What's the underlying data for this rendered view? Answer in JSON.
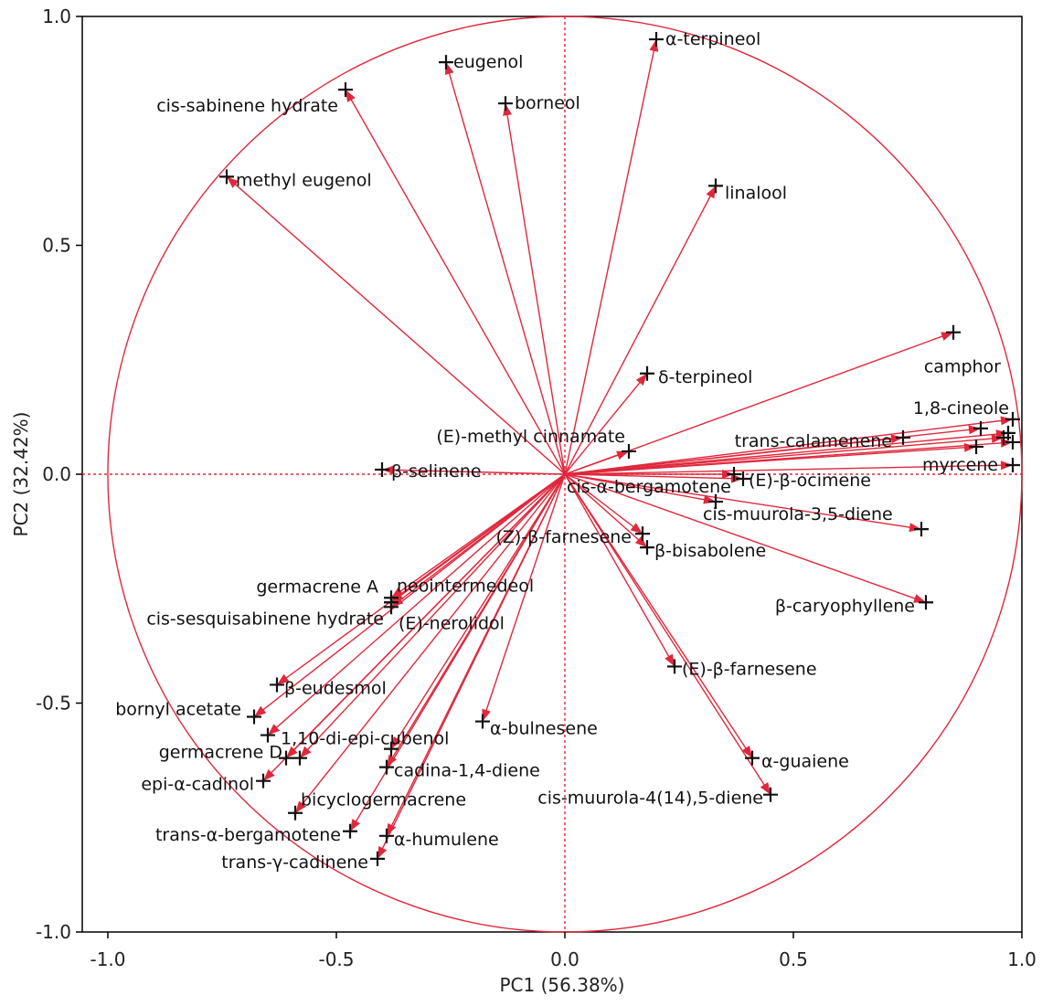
{
  "chart_data": {
    "type": "scatter",
    "subtype": "biplot-loadings",
    "title": "",
    "xlabel": "PC1 (56.38%)",
    "ylabel": "PC2 (32.42%)",
    "xlim": [
      -1.0,
      1.0
    ],
    "ylim": [
      -1.0,
      1.0
    ],
    "xticks": [
      -1.0,
      -0.5,
      0.0,
      0.5,
      1.0
    ],
    "yticks": [
      -1.0,
      -0.5,
      0.0,
      0.5,
      1.0
    ],
    "xtick_labels": [
      "-1.0",
      "-0.5",
      "0.0",
      "0.5",
      "1.0"
    ],
    "ytick_labels": [
      "-1.0",
      "-0.5",
      "0.0",
      "0.5",
      "1.0"
    ],
    "grid": false,
    "unit_circle": true,
    "reference_lines": [
      "x=0",
      "y=0"
    ],
    "colors": {
      "vector": "#e0283c",
      "marker": "#111111",
      "frame": "#000000"
    },
    "points": [
      {
        "label": "eugenol",
        "x": -0.26,
        "y": 0.9
      },
      {
        "label": "α-terpineol",
        "x": 0.2,
        "y": 0.95
      },
      {
        "label": "borneol",
        "x": -0.13,
        "y": 0.81
      },
      {
        "label": "cis-sabinene hydrate",
        "x": -0.48,
        "y": 0.84
      },
      {
        "label": "methyl eugenol",
        "x": -0.74,
        "y": 0.65
      },
      {
        "label": "linalool",
        "x": 0.33,
        "y": 0.63
      },
      {
        "label": "camphor",
        "x": 0.85,
        "y": 0.31
      },
      {
        "label": "δ-terpineol",
        "x": 0.18,
        "y": 0.22
      },
      {
        "label": "1,8-cineole",
        "x": 0.98,
        "y": 0.12
      },
      {
        "label": "trans-calamenene",
        "x": 0.74,
        "y": 0.08
      },
      {
        "label": "",
        "x": 0.91,
        "y": 0.1
      },
      {
        "label": "",
        "x": 0.96,
        "y": 0.08
      },
      {
        "label": "",
        "x": 0.98,
        "y": 0.07
      },
      {
        "label": "",
        "x": 0.97,
        "y": 0.09
      },
      {
        "label": "myrcene",
        "x": 0.9,
        "y": 0.06
      },
      {
        "label": "",
        "x": 0.98,
        "y": 0.02
      },
      {
        "label": "(E)-methyl cinnamate",
        "x": 0.14,
        "y": 0.05
      },
      {
        "label": "β-selinene",
        "x": -0.4,
        "y": 0.01
      },
      {
        "label": "cis-α-bergamotene",
        "x": 0.37,
        "y": 0.0
      },
      {
        "label": "(E)-β-ocimene",
        "x": 0.39,
        "y": -0.01
      },
      {
        "label": "cis-muurola-3,5-diene",
        "x": 0.33,
        "y": -0.06
      },
      {
        "label": "",
        "x": 0.78,
        "y": -0.12
      },
      {
        "label": "(Z)-β-farnesene",
        "x": 0.17,
        "y": -0.13
      },
      {
        "label": "β-bisabolene",
        "x": 0.18,
        "y": -0.16
      },
      {
        "label": "β-caryophyllene",
        "x": 0.79,
        "y": -0.28
      },
      {
        "label": "germacrene A",
        "x": -0.38,
        "y": -0.27
      },
      {
        "label": "neointermedeol",
        "x": -0.38,
        "y": -0.28
      },
      {
        "label": "cis-sesquisabinene hydrate",
        "x": -0.38,
        "y": -0.28
      },
      {
        "label": "(E)-nerolidol",
        "x": -0.38,
        "y": -0.29
      },
      {
        "label": "(E)-β-farnesene",
        "x": 0.24,
        "y": -0.42
      },
      {
        "label": "β-eudesmol",
        "x": -0.63,
        "y": -0.46
      },
      {
        "label": "bornyl acetate",
        "x": -0.68,
        "y": -0.53
      },
      {
        "label": "1,10-di-epi-cubenol",
        "x": -0.65,
        "y": -0.57
      },
      {
        "label": "α-bulnesene",
        "x": -0.18,
        "y": -0.54
      },
      {
        "label": "germacrene D",
        "x": -0.61,
        "y": -0.62
      },
      {
        "label": "",
        "x": -0.58,
        "y": -0.62
      },
      {
        "label": "",
        "x": -0.38,
        "y": -0.6
      },
      {
        "label": "cadina-1,4-diene",
        "x": -0.39,
        "y": -0.64
      },
      {
        "label": "α-guaiene",
        "x": 0.41,
        "y": -0.62
      },
      {
        "label": "epi-α-cadinol",
        "x": -0.66,
        "y": -0.67
      },
      {
        "label": "cis-muurola-4(14),5-diene",
        "x": 0.45,
        "y": -0.7
      },
      {
        "label": "bicyclogermacrene",
        "x": -0.59,
        "y": -0.74
      },
      {
        "label": "trans-α-bergamotene",
        "x": -0.47,
        "y": -0.78
      },
      {
        "label": "α-humulene",
        "x": -0.39,
        "y": -0.79
      },
      {
        "label": "trans-γ-cadinene",
        "x": -0.41,
        "y": -0.84
      }
    ]
  }
}
